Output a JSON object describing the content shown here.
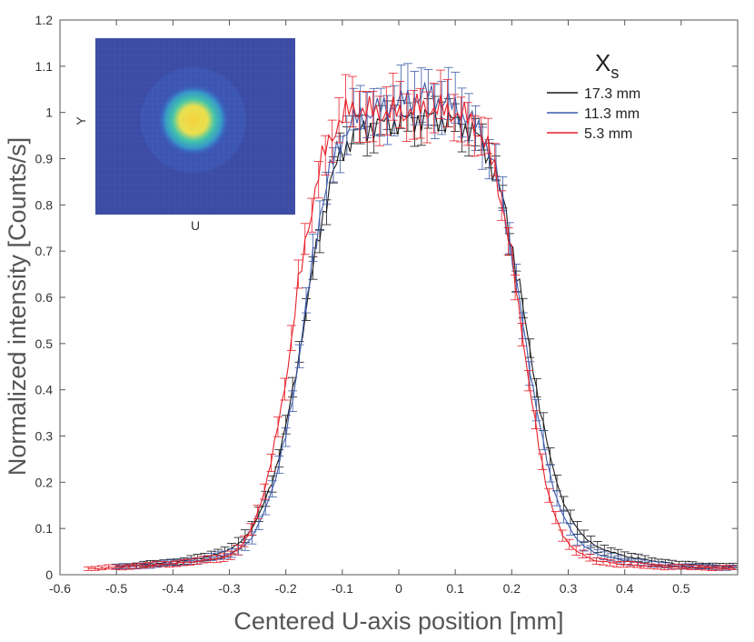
{
  "chart_data": {
    "type": "line",
    "title": "",
    "xlabel": "Centered U-axis position [mm]",
    "ylabel": "Normalized intensity [Counts/s]",
    "xlim": [
      -0.6,
      0.6
    ],
    "ylim": [
      0,
      1.2
    ],
    "xticks": [
      -0.6,
      -0.5,
      -0.4,
      -0.3,
      -0.2,
      -0.1,
      0,
      0.1,
      0.2,
      0.3,
      0.4,
      0.5
    ],
    "yticks": [
      0,
      0.1,
      0.2,
      0.3,
      0.4,
      0.5,
      0.6,
      0.7,
      0.8,
      0.9,
      1,
      1.1,
      1.2
    ],
    "xtick_labels": [
      "-0.6",
      "-0.5",
      "-0.4",
      "-0.3",
      "-0.2",
      "-0.1",
      "0",
      "0.1",
      "0.2",
      "0.3",
      "0.4",
      "0.5"
    ],
    "ytick_labels": [
      "0",
      "0.1",
      "0.2",
      "0.3",
      "0.4",
      "0.5",
      "0.6",
      "0.7",
      "0.8",
      "0.9",
      "1",
      "1.1",
      "1.2"
    ],
    "error_bars": true,
    "legend": {
      "title_main": "X",
      "title_sub": "s",
      "position": "top-right"
    },
    "series": [
      {
        "name": "17.3 mm",
        "color": "#1a1a1a",
        "x": [
          -0.5,
          -0.45,
          -0.4,
          -0.35,
          -0.32,
          -0.3,
          -0.28,
          -0.26,
          -0.24,
          -0.22,
          -0.2,
          -0.18,
          -0.16,
          -0.14,
          -0.12,
          -0.1,
          -0.08,
          -0.05,
          0,
          0.05,
          0.1,
          0.13,
          0.15,
          0.17,
          0.19,
          0.21,
          0.23,
          0.25,
          0.27,
          0.29,
          0.31,
          0.33,
          0.35,
          0.4,
          0.45,
          0.5,
          0.6
        ],
        "y": [
          0.018,
          0.022,
          0.028,
          0.036,
          0.045,
          0.055,
          0.07,
          0.1,
          0.15,
          0.22,
          0.32,
          0.45,
          0.6,
          0.75,
          0.85,
          0.92,
          0.95,
          0.97,
          0.98,
          0.99,
          0.98,
          0.96,
          0.93,
          0.87,
          0.78,
          0.65,
          0.5,
          0.36,
          0.24,
          0.16,
          0.11,
          0.08,
          0.06,
          0.04,
          0.03,
          0.022,
          0.018
        ],
        "err": [
          0.005,
          0.006,
          0.006,
          0.008,
          0.01,
          0.011,
          0.013,
          0.015,
          0.016,
          0.018,
          0.02,
          0.022,
          0.024,
          0.025,
          0.028,
          0.03,
          0.03,
          0.032,
          0.03,
          0.032,
          0.03,
          0.03,
          0.028,
          0.026,
          0.024,
          0.022,
          0.02,
          0.02,
          0.018,
          0.016,
          0.014,
          0.013,
          0.012,
          0.009,
          0.007,
          0.006,
          0.005
        ]
      },
      {
        "name": "11.3 mm",
        "color": "#3c5aa8",
        "x": [
          -0.5,
          -0.45,
          -0.4,
          -0.35,
          -0.3,
          -0.28,
          -0.26,
          -0.24,
          -0.22,
          -0.2,
          -0.18,
          -0.16,
          -0.14,
          -0.12,
          -0.1,
          -0.08,
          -0.05,
          0,
          0.05,
          0.1,
          0.13,
          0.15,
          0.17,
          0.19,
          0.21,
          0.23,
          0.25,
          0.27,
          0.29,
          0.31,
          0.33,
          0.35,
          0.4,
          0.45,
          0.5,
          0.6
        ],
        "y": [
          0.016,
          0.02,
          0.025,
          0.032,
          0.045,
          0.056,
          0.08,
          0.13,
          0.2,
          0.3,
          0.44,
          0.62,
          0.78,
          0.88,
          0.95,
          0.98,
          1.0,
          1.02,
          1.04,
          1.01,
          0.98,
          0.95,
          0.88,
          0.77,
          0.62,
          0.46,
          0.32,
          0.2,
          0.13,
          0.085,
          0.06,
          0.045,
          0.03,
          0.022,
          0.018,
          0.015
        ],
        "err": [
          0.005,
          0.006,
          0.006,
          0.007,
          0.009,
          0.011,
          0.013,
          0.015,
          0.018,
          0.02,
          0.024,
          0.028,
          0.032,
          0.036,
          0.04,
          0.045,
          0.05,
          0.055,
          0.06,
          0.055,
          0.05,
          0.045,
          0.04,
          0.035,
          0.03,
          0.026,
          0.022,
          0.018,
          0.014,
          0.012,
          0.01,
          0.009,
          0.007,
          0.006,
          0.005,
          0.005
        ]
      },
      {
        "name": "5.3 mm",
        "color": "#e8202a",
        "x": [
          -0.55,
          -0.5,
          -0.45,
          -0.4,
          -0.35,
          -0.3,
          -0.28,
          -0.26,
          -0.24,
          -0.22,
          -0.2,
          -0.18,
          -0.16,
          -0.14,
          -0.12,
          -0.1,
          -0.08,
          -0.05,
          0,
          0.05,
          0.1,
          0.13,
          0.15,
          0.17,
          0.19,
          0.21,
          0.23,
          0.25,
          0.27,
          0.29,
          0.31,
          0.33,
          0.35,
          0.4,
          0.45,
          0.5,
          0.6
        ],
        "y": [
          0.013,
          0.016,
          0.02,
          0.024,
          0.03,
          0.04,
          0.06,
          0.1,
          0.17,
          0.28,
          0.42,
          0.6,
          0.76,
          0.88,
          0.95,
          0.99,
          1.01,
          1.0,
          1.0,
          1.01,
          1.0,
          0.98,
          0.94,
          0.88,
          0.76,
          0.6,
          0.42,
          0.26,
          0.15,
          0.085,
          0.055,
          0.04,
          0.03,
          0.022,
          0.018,
          0.016,
          0.014
        ],
        "err": [
          0.004,
          0.005,
          0.005,
          0.006,
          0.007,
          0.009,
          0.011,
          0.013,
          0.016,
          0.02,
          0.024,
          0.03,
          0.035,
          0.04,
          0.045,
          0.05,
          0.055,
          0.055,
          0.05,
          0.055,
          0.05,
          0.045,
          0.04,
          0.035,
          0.03,
          0.026,
          0.022,
          0.018,
          0.014,
          0.012,
          0.01,
          0.008,
          0.007,
          0.006,
          0.005,
          0.005,
          0.004
        ]
      }
    ],
    "inset": {
      "type": "heatmap",
      "x_label": "U",
      "y_label": "Y",
      "colormap": [
        "#3b4cc0",
        "#2fb0c8",
        "#f2e25a",
        "#f7c842"
      ]
    }
  }
}
